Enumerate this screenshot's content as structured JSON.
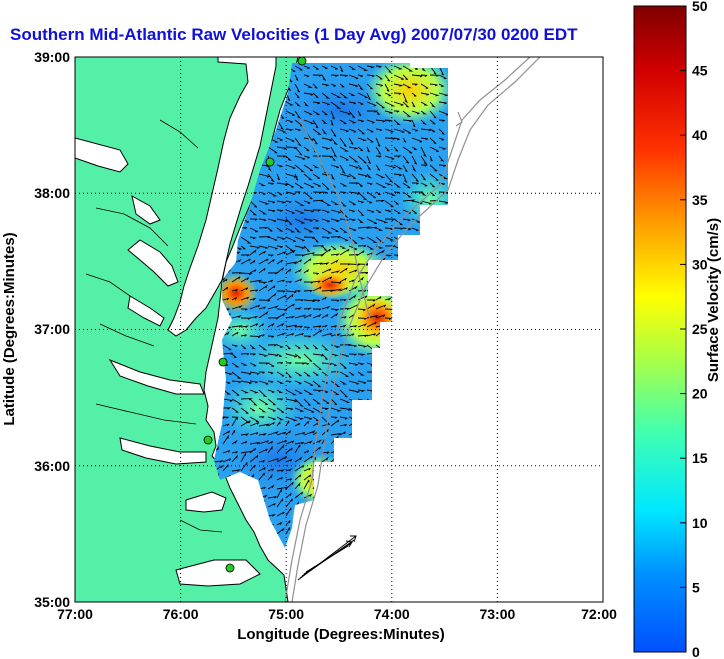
{
  "title": "Southern Mid-Atlantic Raw Velocities (1 Day Avg) 2007/07/30 0200 EDT",
  "map": {
    "xlabel": "Longitude (Degrees:Minutes)",
    "ylabel": "Latitude (Degrees:Minutes)",
    "x_ticks": [
      "77:00",
      "76:00",
      "75:00",
      "74:00",
      "73:00",
      "72:00"
    ],
    "y_ticks": [
      "39:00",
      "38:00",
      "37:00",
      "36:00",
      "35:00"
    ],
    "lon_range": [
      -77,
      -72
    ],
    "lat_range": [
      35,
      39
    ],
    "grid": true,
    "land_color": "#55f0a8",
    "site_color": "#22cc22"
  },
  "colorbar": {
    "label": "Surface Velocity (cm/s)",
    "ticks": [
      "0",
      "5",
      "10",
      "15",
      "20",
      "25",
      "30",
      "35",
      "40",
      "45",
      "50"
    ],
    "range": [
      0,
      50
    ],
    "units": "cm/s"
  },
  "reference_vector": {
    "label": "",
    "note": "arrow bundle near 35:20 N, 74:40 W"
  }
}
